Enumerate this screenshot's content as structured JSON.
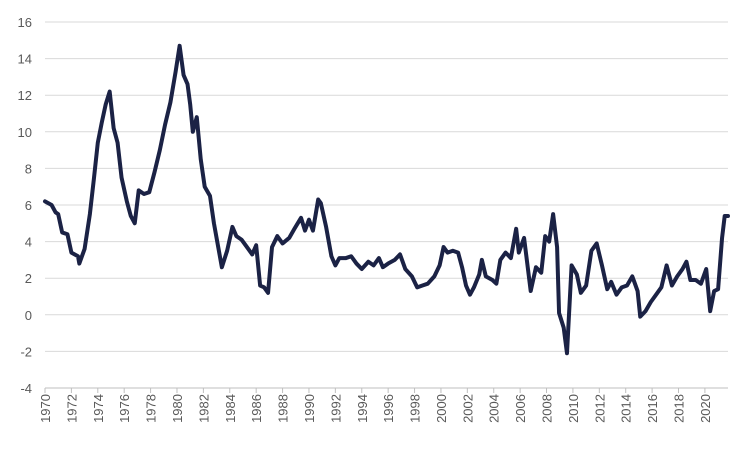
{
  "chart_data": {
    "type": "line",
    "color": "#1b2245",
    "grid": true,
    "xlim": [
      1970,
      2021.75
    ],
    "xticks": [
      1970,
      1972,
      1974,
      1976,
      1978,
      1980,
      1982,
      1984,
      1986,
      1988,
      1990,
      1992,
      1994,
      1996,
      1998,
      2000,
      2002,
      2004,
      2006,
      2008,
      2010,
      2012,
      2014,
      2016,
      2018,
      2020
    ],
    "ylim": [
      -4,
      16
    ],
    "yticks": [
      -4,
      -2,
      0,
      2,
      4,
      6,
      8,
      10,
      12,
      14,
      16
    ],
    "x": [
      1970.0,
      1970.5,
      1970.8,
      1971.0,
      1971.3,
      1971.7,
      1972.0,
      1972.5,
      1972.6,
      1973.0,
      1973.4,
      1973.7,
      1974.0,
      1974.3,
      1974.6,
      1974.9,
      1975.2,
      1975.5,
      1975.8,
      1976.2,
      1976.5,
      1976.8,
      1977.1,
      1977.5,
      1977.9,
      1978.3,
      1978.7,
      1979.1,
      1979.5,
      1979.9,
      1980.2,
      1980.5,
      1980.8,
      1981.0,
      1981.2,
      1981.5,
      1981.8,
      1982.1,
      1982.5,
      1982.8,
      1983.1,
      1983.4,
      1983.8,
      1984.2,
      1984.5,
      1984.9,
      1985.3,
      1985.7,
      1986.0,
      1986.3,
      1986.6,
      1986.9,
      1987.2,
      1987.6,
      1988.0,
      1988.5,
      1988.9,
      1989.4,
      1989.7,
      1990.0,
      1990.3,
      1990.7,
      1990.9,
      1991.3,
      1991.7,
      1992.0,
      1992.3,
      1992.8,
      1993.2,
      1993.6,
      1994.0,
      1994.5,
      1994.9,
      1995.3,
      1995.6,
      1996.0,
      1996.5,
      1996.9,
      1997.3,
      1997.8,
      1998.2,
      1998.6,
      1999.0,
      1999.5,
      1999.9,
      2000.2,
      2000.5,
      2000.9,
      2001.3,
      2001.6,
      2001.9,
      2002.2,
      2002.5,
      2002.9,
      2003.1,
      2003.4,
      2003.9,
      2004.2,
      2004.5,
      2004.9,
      2005.3,
      2005.7,
      2005.9,
      2006.3,
      2006.8,
      2007.2,
      2007.6,
      2007.9,
      2008.2,
      2008.5,
      2008.8,
      2008.95,
      2009.3,
      2009.55,
      2009.9,
      2010.3,
      2010.6,
      2011.0,
      2011.4,
      2011.8,
      2012.2,
      2012.6,
      2012.9,
      2013.3,
      2013.7,
      2014.1,
      2014.5,
      2014.9,
      2015.1,
      2015.5,
      2015.9,
      2016.3,
      2016.7,
      2017.1,
      2017.5,
      2017.9,
      2018.3,
      2018.6,
      2018.9,
      2019.3,
      2019.7,
      2020.1,
      2020.4,
      2020.7,
      2021.0,
      2021.3,
      2021.5,
      2021.75
    ],
    "values": [
      6.2,
      6.0,
      5.6,
      5.5,
      4.5,
      4.4,
      3.4,
      3.2,
      2.8,
      3.6,
      5.5,
      7.4,
      9.4,
      10.5,
      11.5,
      12.2,
      10.2,
      9.4,
      7.5,
      6.2,
      5.4,
      5.0,
      6.8,
      6.6,
      6.7,
      7.8,
      9.0,
      10.4,
      11.6,
      13.3,
      14.7,
      13.1,
      12.6,
      11.5,
      10.0,
      10.8,
      8.5,
      7.0,
      6.5,
      5.0,
      3.8,
      2.6,
      3.5,
      4.8,
      4.3,
      4.1,
      3.7,
      3.3,
      3.8,
      1.6,
      1.5,
      1.2,
      3.7,
      4.3,
      3.9,
      4.2,
      4.7,
      5.3,
      4.6,
      5.2,
      4.6,
      6.3,
      6.1,
      4.8,
      3.2,
      2.7,
      3.1,
      3.1,
      3.2,
      2.8,
      2.5,
      2.9,
      2.7,
      3.1,
      2.6,
      2.8,
      3.0,
      3.3,
      2.5,
      2.1,
      1.5,
      1.6,
      1.7,
      2.1,
      2.7,
      3.7,
      3.4,
      3.5,
      3.4,
      2.6,
      1.6,
      1.1,
      1.5,
      2.2,
      3.0,
      2.1,
      1.9,
      1.7,
      3.0,
      3.4,
      3.1,
      4.7,
      3.4,
      4.2,
      1.3,
      2.6,
      2.3,
      4.3,
      4.0,
      5.5,
      3.7,
      0.1,
      -0.7,
      -2.1,
      2.7,
      2.2,
      1.2,
      1.6,
      3.5,
      3.9,
      2.7,
      1.4,
      1.8,
      1.1,
      1.5,
      1.6,
      2.1,
      1.3,
      -0.1,
      0.2,
      0.7,
      1.1,
      1.5,
      2.7,
      1.6,
      2.1,
      2.5,
      2.9,
      1.9,
      1.9,
      1.7,
      2.5,
      0.2,
      1.3,
      1.4,
      4.2,
      5.4,
      5.4
    ]
  }
}
